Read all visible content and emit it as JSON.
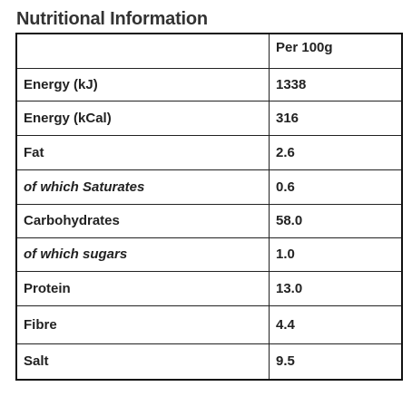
{
  "header": {
    "title": "Nutritional Information"
  },
  "table": {
    "columns": [
      "Per 100g"
    ],
    "rows": [
      [
        "Energy (kJ)",
        "1338"
      ],
      [
        "Energy (kCal)",
        "316"
      ],
      [
        "Fat",
        "2.6"
      ],
      [
        "of which Saturates",
        "0.6"
      ],
      [
        "Carbohydrates",
        "58.0"
      ],
      [
        "of which sugars",
        "1.0"
      ],
      [
        "Protein",
        "13.0"
      ],
      [
        "Fibre",
        "4.4"
      ],
      [
        "Salt",
        "9.5"
      ]
    ]
  }
}
